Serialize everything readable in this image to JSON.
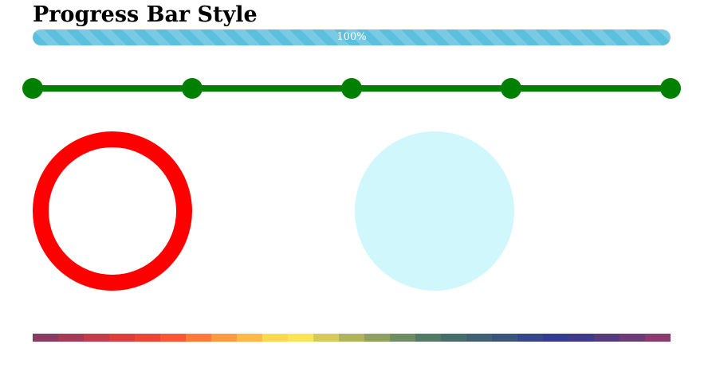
{
  "page": {
    "title": "Progress Bar Style"
  },
  "striped_progress": {
    "label": "100%",
    "value": 100,
    "color": "#5bc0de"
  },
  "step_progress": {
    "steps": 5,
    "color": "#008000"
  },
  "ring_progress": {
    "color": "#ff0000",
    "value": 100
  },
  "disc_progress": {
    "color": "#cff7fc"
  },
  "rainbow_progress": {
    "colors": [
      "#8b3a62",
      "#a63a55",
      "#c43c4a",
      "#de3d3d",
      "#ee4436",
      "#fb5536",
      "#ff7a38",
      "#ff9a40",
      "#ffb948",
      "#fdd850",
      "#fbe556",
      "#d6ca5a",
      "#b0b45c",
      "#8ea15e",
      "#6e8d60",
      "#537a63",
      "#456d6a",
      "#3f6172",
      "#3a547b",
      "#36468a",
      "#343c92",
      "#3e3c8a",
      "#553c7f",
      "#6c3c76",
      "#8a3a6c"
    ]
  }
}
